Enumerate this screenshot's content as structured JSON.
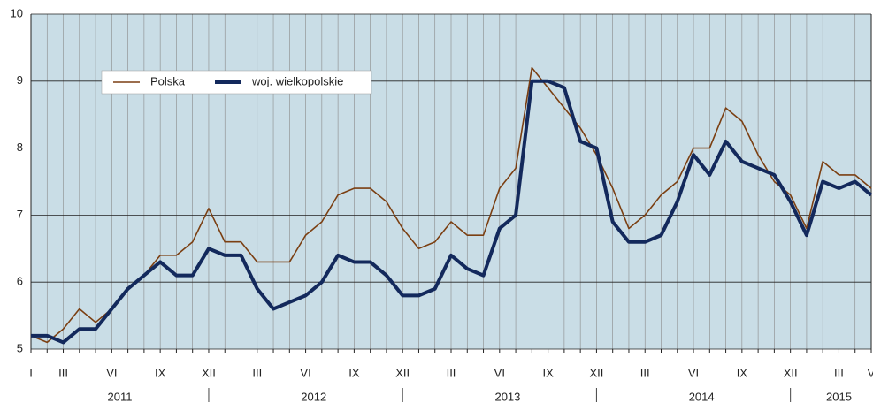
{
  "chart_data": {
    "type": "line",
    "categories": [
      "I",
      null,
      "III",
      null,
      null,
      "VI",
      null,
      null,
      "IX",
      null,
      null,
      "XII",
      null,
      null,
      "III",
      null,
      null,
      "VI",
      null,
      null,
      "IX",
      null,
      null,
      "XII",
      null,
      null,
      "III",
      null,
      null,
      "VI",
      null,
      null,
      "IX",
      null,
      null,
      "XII",
      null,
      null,
      "III",
      null,
      null,
      "VI",
      null,
      null,
      "IX",
      null,
      null,
      "XII",
      null,
      null,
      "III",
      null,
      "V"
    ],
    "years": [
      "2011",
      "2012",
      "2013",
      "2014",
      "2015"
    ],
    "series": [
      {
        "name": "Polska",
        "color": "#7b3f12",
        "values": [
          5.2,
          5.1,
          5.3,
          5.6,
          5.4,
          5.6,
          5.9,
          6.1,
          6.4,
          6.4,
          6.6,
          7.1,
          6.6,
          6.6,
          6.3,
          6.3,
          6.3,
          6.7,
          6.9,
          7.3,
          7.4,
          7.4,
          7.2,
          6.8,
          6.5,
          6.6,
          6.9,
          6.7,
          6.7,
          7.4,
          7.7,
          9.2,
          8.9,
          8.6,
          8.3,
          7.9,
          7.4,
          6.8,
          7.0,
          7.3,
          7.5,
          8.0,
          8.0,
          8.6,
          8.4,
          7.9,
          7.5,
          7.3,
          6.8,
          7.8,
          7.6,
          7.6,
          7.4
        ]
      },
      {
        "name": "woj. wielkopolskie",
        "color": "#13295c",
        "values": [
          5.2,
          5.2,
          5.1,
          5.3,
          5.3,
          5.6,
          5.9,
          6.1,
          6.3,
          6.1,
          6.1,
          6.5,
          6.4,
          6.4,
          5.9,
          5.6,
          5.7,
          5.8,
          6.0,
          6.4,
          6.3,
          6.3,
          6.1,
          5.8,
          5.8,
          5.9,
          6.4,
          6.2,
          6.1,
          6.8,
          7.0,
          9.0,
          9.0,
          8.9,
          8.1,
          8.0,
          6.9,
          6.6,
          6.6,
          6.7,
          7.2,
          7.9,
          7.6,
          8.1,
          7.8,
          7.7,
          7.6,
          7.2,
          6.7,
          7.5,
          7.4,
          7.5,
          7.3
        ]
      }
    ],
    "ylim": [
      5,
      10
    ],
    "yticks": [
      5,
      6,
      7,
      8,
      9,
      10
    ],
    "grid": true
  }
}
